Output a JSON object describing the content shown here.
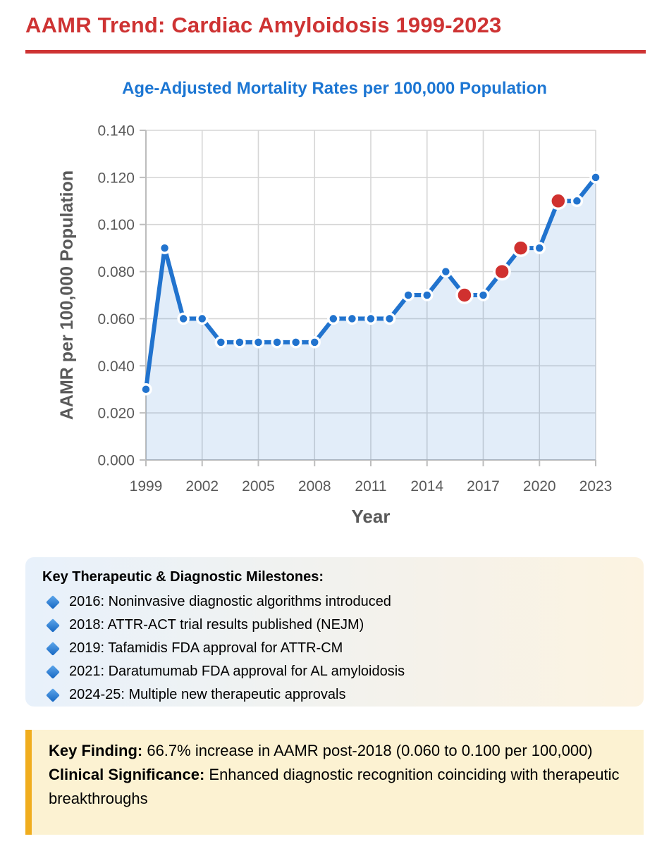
{
  "page": {
    "title": "AAMR Trend: Cardiac Amyloidosis 1999-2023"
  },
  "colors": {
    "title_red": "#CE3333",
    "rule_red": "#CE3333",
    "subtitle_blue": "#1C76D3",
    "line_blue": "#2173CE",
    "milestone_red": "#D0312F",
    "point_stroke": "#FFFFFF",
    "area_fill": "rgba(33,115,206,0.13)",
    "grid_gray": "#D6D6D6",
    "axis_gray": "#BDBDBD",
    "tick_text_gray": "#595959",
    "milestones_gradient_left": "#E8F1FB",
    "milestones_gradient_right": "#FCF3E1",
    "diamond_light": "#5FA8EC",
    "diamond_dark": "#1465C1",
    "finding_bg": "#FCF2D2",
    "finding_border": "#F0AD1E"
  },
  "chart_data": {
    "type": "area",
    "title": "Age-Adjusted Mortality Rates per 100,000 Population",
    "xlabel": "Year",
    "ylabel": "AAMR per 100,000 Population",
    "x": [
      1999,
      2000,
      2001,
      2002,
      2003,
      2004,
      2005,
      2006,
      2007,
      2008,
      2009,
      2010,
      2011,
      2012,
      2013,
      2014,
      2015,
      2016,
      2017,
      2018,
      2019,
      2020,
      2021,
      2022,
      2023
    ],
    "values": [
      0.03,
      0.09,
      0.06,
      0.06,
      0.05,
      0.05,
      0.05,
      0.05,
      0.05,
      0.05,
      0.06,
      0.06,
      0.06,
      0.06,
      0.07,
      0.07,
      0.08,
      0.07,
      0.07,
      0.08,
      0.09,
      0.09,
      0.11,
      0.11,
      0.12
    ],
    "milestone_years": [
      2016,
      2018,
      2019,
      2021
    ],
    "x_ticks": [
      1999,
      2002,
      2005,
      2008,
      2011,
      2014,
      2017,
      2020,
      2023
    ],
    "y_ticks": [
      "0.000",
      "0.020",
      "0.040",
      "0.060",
      "0.080",
      "0.100",
      "0.120",
      "0.140"
    ],
    "ylim": [
      0,
      0.14
    ],
    "xlim": [
      1999,
      2023
    ],
    "grid": true,
    "legend": "none"
  },
  "milestones": {
    "heading": "Key Therapeutic & Diagnostic Milestones:",
    "items": [
      "2016: Noninvasive diagnostic algorithms introduced",
      "2018: ATTR-ACT trial results published (NEJM)",
      "2019: Tafamidis FDA approval for ATTR-CM",
      "2021: Daratumumab FDA approval for AL amyloidosis",
      "2024-25: Multiple new therapeutic approvals"
    ]
  },
  "findings": {
    "key_finding_label": "Key Finding:",
    "key_finding_text": " 66.7% increase in AAMR post-2018 (0.060 to 0.100 per 100,000)",
    "significance_label": "Clinical Significance:",
    "significance_text": " Enhanced diagnostic recognition coinciding with therapeutic breakthroughs"
  }
}
